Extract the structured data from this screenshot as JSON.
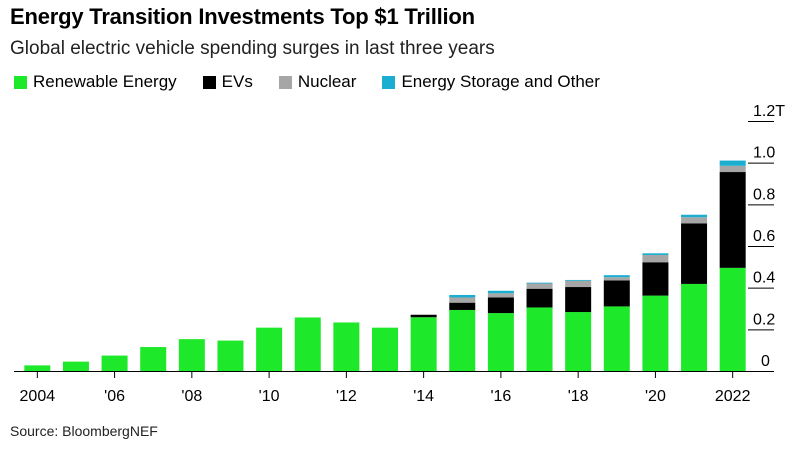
{
  "title": "Energy Transition Investments Top $1 Trillion",
  "subtitle": "Global electric vehicle spending surges in last three years",
  "source": "Source: BloombergNEF",
  "colors": {
    "renewable": "#1ee82a",
    "evs": "#000000",
    "nuclear": "#a6a6a6",
    "storage": "#1aaed0"
  },
  "chart_data": {
    "type": "bar",
    "stacked": true,
    "x": [
      2004,
      2005,
      2006,
      2007,
      2008,
      2009,
      2010,
      2011,
      2012,
      2013,
      2014,
      2015,
      2016,
      2017,
      2018,
      2019,
      2020,
      2021,
      2022
    ],
    "x_tick_labels": [
      "2004",
      "",
      "'06",
      "",
      "'08",
      "",
      "'10",
      "",
      "'12",
      "",
      "'14",
      "",
      "'16",
      "",
      "'18",
      "",
      "'20",
      "",
      "2022"
    ],
    "series": [
      {
        "name": "Renewable Energy",
        "color": "#1ee82a",
        "values": [
          0.027,
          0.045,
          0.074,
          0.115,
          0.153,
          0.146,
          0.208,
          0.257,
          0.233,
          0.208,
          0.258,
          0.293,
          0.278,
          0.305,
          0.283,
          0.31,
          0.362,
          0.418,
          0.495
        ]
      },
      {
        "name": "EVs",
        "color": "#000000",
        "values": [
          0,
          0,
          0,
          0,
          0,
          0,
          0,
          0,
          0,
          0,
          0.012,
          0.035,
          0.075,
          0.09,
          0.12,
          0.125,
          0.16,
          0.29,
          0.46
        ]
      },
      {
        "name": "Nuclear",
        "color": "#a6a6a6",
        "values": [
          0,
          0,
          0,
          0,
          0,
          0,
          0,
          0,
          0,
          0,
          0,
          0.025,
          0.02,
          0.025,
          0.03,
          0.015,
          0.035,
          0.03,
          0.03
        ]
      },
      {
        "name": "Energy Storage and Other",
        "color": "#1aaed0",
        "values": [
          0,
          0,
          0,
          0,
          0,
          0,
          0,
          0,
          0,
          0,
          0,
          0.012,
          0.012,
          0.004,
          0.004,
          0.01,
          0.008,
          0.012,
          0.025
        ]
      }
    ],
    "y_ticks": [
      {
        "value": 0,
        "label": "0"
      },
      {
        "value": 0.2,
        "label": "0.2"
      },
      {
        "value": 0.4,
        "label": "0.4"
      },
      {
        "value": 0.6,
        "label": "0.6"
      },
      {
        "value": 0.8,
        "label": "0.8"
      },
      {
        "value": 1.0,
        "label": "1.0"
      },
      {
        "value": 1.2,
        "label": "1.2T"
      }
    ],
    "ylim": [
      0,
      1.2
    ],
    "y_axis_side": "right",
    "grid": false,
    "legend_position": "top-left"
  }
}
